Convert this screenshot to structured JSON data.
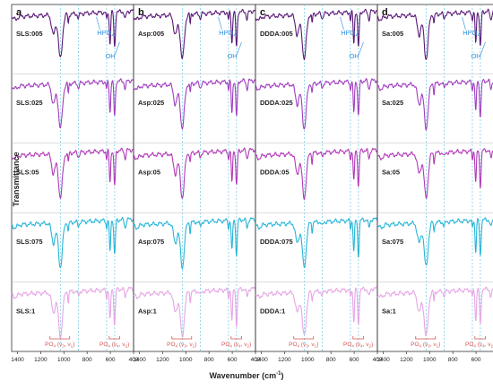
{
  "figure": {
    "ylabel": "Transmittance",
    "xlabel": "Wavenumber (cm",
    "xlabel_sup": "-1",
    "xlabel_suffix": ")"
  },
  "colors": {
    "005": "#5b1a78",
    "025": "#a13ec0",
    "05": "#b23ab8",
    "075": "#29b6d8",
    "1": "#e7a6e6",
    "annotation": "#2c8fe0",
    "bracket": "#d9534f",
    "guide": "#6ec7e3"
  },
  "chart_data": [
    {
      "type": "line",
      "panel": "a",
      "x_ticks": [
        "1400",
        "1200",
        "1000",
        "800",
        "600",
        "400"
      ],
      "xlim": [
        1450,
        400
      ],
      "series": [
        {
          "name": "SLS:005"
        },
        {
          "name": "SLS:025"
        },
        {
          "name": "SLS:05"
        },
        {
          "name": "SLS:075"
        },
        {
          "name": "SLS:1"
        }
      ],
      "annotations": [
        "HPO",
        "OH"
      ],
      "bands": [
        {
          "label": "PO",
          "sub": "4",
          "modes": "(ν",
          "m1": "3",
          "m2": "1",
          "range": [
            1120,
            950
          ]
        },
        {
          "label": "PO",
          "sub": "4",
          "modes": "(ν",
          "m1": "4",
          "m2": "2",
          "range": [
            610,
            520
          ]
        }
      ]
    },
    {
      "type": "line",
      "panel": "b",
      "x_ticks": [
        "1400",
        "1200",
        "1000",
        "800",
        "600",
        "400"
      ],
      "xlim": [
        1450,
        400
      ],
      "series": [
        {
          "name": "Asp:005"
        },
        {
          "name": "Asp:025"
        },
        {
          "name": "Asp:05"
        },
        {
          "name": "Asp:075"
        },
        {
          "name": "Asp:1"
        }
      ],
      "annotations": [
        "HPO",
        "OH"
      ],
      "bands": [
        {
          "label": "PO",
          "sub": "4",
          "modes": "(ν",
          "m1": "3",
          "m2": "1",
          "range": [
            1120,
            950
          ]
        },
        {
          "label": "PO",
          "sub": "4",
          "modes": "(ν",
          "m1": "4",
          "m2": "2",
          "range": [
            610,
            520
          ]
        }
      ]
    },
    {
      "type": "line",
      "panel": "c",
      "x_ticks": [
        "1400",
        "1200",
        "1000",
        "800",
        "600",
        "400"
      ],
      "xlim": [
        1450,
        400
      ],
      "series": [
        {
          "name": "DDDA:005"
        },
        {
          "name": "DDDA:025"
        },
        {
          "name": "DDDA:05"
        },
        {
          "name": "DDDA:075"
        },
        {
          "name": "DDDA:1"
        }
      ],
      "annotations": [
        "HPO",
        "OH"
      ],
      "bands": [
        {
          "label": "PO",
          "sub": "4",
          "modes": "(ν",
          "m1": "3",
          "m2": "1",
          "range": [
            1120,
            950
          ]
        },
        {
          "label": "PO",
          "sub": "4",
          "modes": "(ν",
          "m1": "4",
          "m2": "2",
          "range": [
            610,
            520
          ]
        }
      ]
    },
    {
      "type": "line",
      "panel": "d",
      "x_ticks": [
        "1400",
        "1200",
        "1000",
        "800",
        "600",
        "400"
      ],
      "xlim": [
        1450,
        400
      ],
      "series": [
        {
          "name": "Sa:005"
        },
        {
          "name": "Sa:025"
        },
        {
          "name": "Sa:05"
        },
        {
          "name": "Sa:075"
        },
        {
          "name": "Sa:1"
        }
      ],
      "annotations": [
        "HPO",
        "OH"
      ],
      "bands": [
        {
          "label": "PO",
          "sub": "4",
          "modes": "(ν",
          "m1": "3",
          "m2": "1",
          "range": [
            1120,
            950
          ]
        },
        {
          "label": "PO",
          "sub": "4",
          "modes": "(ν",
          "m1": "4",
          "m2": "2",
          "range": [
            610,
            520
          ]
        }
      ]
    }
  ]
}
